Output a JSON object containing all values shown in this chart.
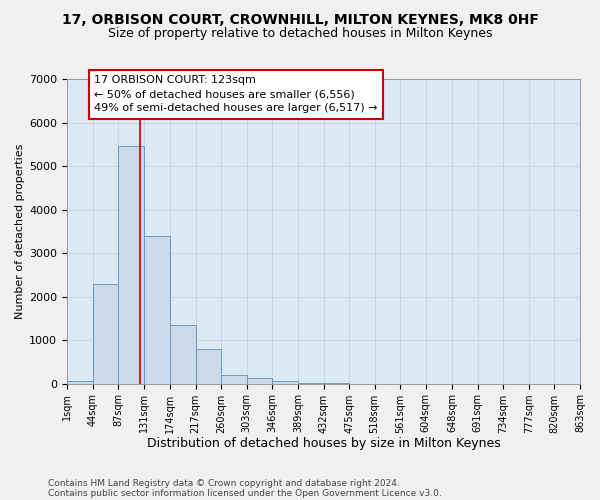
{
  "title_line1": "17, ORBISON COURT, CROWNHILL, MILTON KEYNES, MK8 0HF",
  "title_line2": "Size of property relative to detached houses in Milton Keynes",
  "xlabel": "Distribution of detached houses by size in Milton Keynes",
  "ylabel": "Number of detached properties",
  "footer_line1": "Contains HM Land Registry data © Crown copyright and database right 2024.",
  "footer_line2": "Contains public sector information licensed under the Open Government Licence v3.0.",
  "annotation_line1": "17 ORBISON COURT: 123sqm",
  "annotation_line2": "← 50% of detached houses are smaller (6,556)",
  "annotation_line3": "49% of semi-detached houses are larger (6,517) →",
  "property_size_sqm": 123,
  "bar_values": [
    50,
    2280,
    5450,
    3400,
    1350,
    800,
    200,
    120,
    50,
    10,
    5,
    2,
    1,
    1,
    1,
    1,
    1,
    1,
    1,
    1
  ],
  "bin_edges": [
    1,
    44,
    87,
    131,
    174,
    217,
    260,
    303,
    346,
    389,
    432,
    475,
    518,
    561,
    604,
    648,
    691,
    734,
    777,
    820,
    863
  ],
  "tick_labels": [
    "1sqm",
    "44sqm",
    "87sqm",
    "131sqm",
    "174sqm",
    "217sqm",
    "260sqm",
    "303sqm",
    "346sqm",
    "389sqm",
    "432sqm",
    "475sqm",
    "518sqm",
    "561sqm",
    "604sqm",
    "648sqm",
    "691sqm",
    "734sqm",
    "777sqm",
    "820sqm",
    "863sqm"
  ],
  "ylim": [
    0,
    7000
  ],
  "yticks": [
    0,
    1000,
    2000,
    3000,
    4000,
    5000,
    6000,
    7000
  ],
  "bar_color": "#ccd9e8",
  "bar_edge_color": "#6a9abf",
  "grid_color": "#c8d4e4",
  "background_color": "#dce8f5",
  "fig_background_color": "#f0f0f0",
  "vline_color": "#cc0000",
  "vline_x": 123,
  "annotation_box_facecolor": "#ffffff",
  "annotation_box_edgecolor": "#cc0000",
  "title1_fontsize": 10,
  "title2_fontsize": 9,
  "xlabel_fontsize": 9,
  "ylabel_fontsize": 8,
  "tick_fontsize": 7,
  "annotation_fontsize": 8,
  "footer_fontsize": 6.5
}
